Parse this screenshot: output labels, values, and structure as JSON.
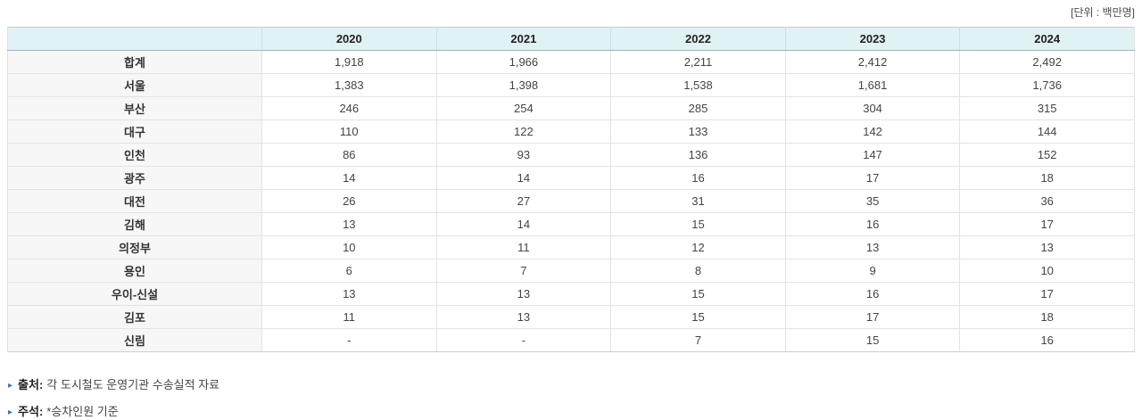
{
  "page": {
    "unit_label": "[단위 : 백만명]"
  },
  "chart_data": {
    "type": "table",
    "unit": "백만명",
    "columns": [
      "2020",
      "2021",
      "2022",
      "2023",
      "2024"
    ],
    "rows": [
      {
        "label": "합계",
        "values": [
          "1,918",
          "1,966",
          "2,211",
          "2,412",
          "2,492"
        ]
      },
      {
        "label": "서울",
        "values": [
          "1,383",
          "1,398",
          "1,538",
          "1,681",
          "1,736"
        ]
      },
      {
        "label": "부산",
        "values": [
          "246",
          "254",
          "285",
          "304",
          "315"
        ]
      },
      {
        "label": "대구",
        "values": [
          "110",
          "122",
          "133",
          "142",
          "144"
        ]
      },
      {
        "label": "인천",
        "values": [
          "86",
          "93",
          "136",
          "147",
          "152"
        ]
      },
      {
        "label": "광주",
        "values": [
          "14",
          "14",
          "16",
          "17",
          "18"
        ]
      },
      {
        "label": "대전",
        "values": [
          "26",
          "27",
          "31",
          "35",
          "36"
        ]
      },
      {
        "label": "김해",
        "values": [
          "13",
          "14",
          "15",
          "16",
          "17"
        ]
      },
      {
        "label": "의정부",
        "values": [
          "10",
          "11",
          "12",
          "13",
          "13"
        ]
      },
      {
        "label": "용인",
        "values": [
          "6",
          "7",
          "8",
          "9",
          "10"
        ]
      },
      {
        "label": "우이-신설",
        "values": [
          "13",
          "13",
          "15",
          "16",
          "17"
        ]
      },
      {
        "label": "김포",
        "values": [
          "11",
          "13",
          "15",
          "17",
          "18"
        ]
      },
      {
        "label": "신림",
        "values": [
          "-",
          "-",
          "7",
          "15",
          "16"
        ]
      }
    ]
  },
  "notes": [
    {
      "bullet": "▸",
      "label": "출처:",
      "text": "각 도시철도 운영기관 수송실적 자료"
    },
    {
      "bullet": "▸",
      "label": "주석:",
      "text": "*승차인원 기준"
    }
  ],
  "colors": {
    "header_bg": "#e1f2f5",
    "label_col_bg": "#f7f7f7",
    "border": "#e3e3e3",
    "header_border_bottom": "#a3b6ba",
    "bullet": "#3f76a8"
  }
}
